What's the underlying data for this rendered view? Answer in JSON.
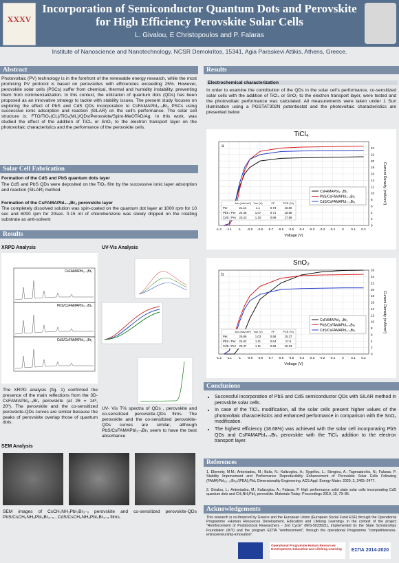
{
  "header": {
    "title": "Incorporation of Semiconductor Quantum Dots and Perovskite for High Efficiency Perovskite Solar Cells",
    "authors": "L. Givalou, E Christopoulos and P. Falaras",
    "affiliation": "Institute of Nanoscience and Nanotechnology, NCSR Demokritos, 15341, Agia Paraskevi Attikis, Athens, Greece.",
    "logo_text": "XXXV"
  },
  "abstract": {
    "heading": "Abstract",
    "text": "Photovoltaic (PV) technology is in the forefront of the renewable energy research, while the most promising PV protocol is based on perovskites with efficiencies exceeding 25%. However, perovskite solar cells (PSCs) suffer from chemical, thermal and humidity instability, preventing them from commercialization. In this context, the utilization of quantum dots (QDs) has been proposed as an innovative strategy to tackle with stability issues. The present study focuses on exploring the effect of PbS and CdS QDs incorporation to CsFAMAPbI₃₋ₓBrₓ PSCs using successive ionic adsorption and reaction (SILAR) on the cell's performance. The solar cell structure is: FTO/TiO₂(CL)/TiO₂(ML)/QDs/Perovskite/Spiro-MeOTAD/Ag. In this work, was studied the effect of the addition of TiCl₄ or SnO₂ to the electron transport layer on the photovoltaic characteristics and the performance of the perovskite cells."
  },
  "fabrication": {
    "heading": "Solar Cell Fabrication",
    "steps": [
      {
        "title": "Formation of the CdS and PbS quantum dots layer",
        "text": "The CdS and PbS QDs were deposited on the TiO₂ film by the successive ionic layer adsorption and reaction (SILAR) method."
      },
      {
        "title": "Formation of the CsFAMAPbI₃₋ₓBrₓ perovskite layer",
        "text": "The completely dissolved solution was spin-coated on the quantum dot layer at 1000 rpm for 10 sec and 6000 rpm for 20sec. 0.15 ml of chlorobenzene was slowly dripped on the rotating substrate as anti-solvent"
      }
    ]
  },
  "results_left": {
    "heading": "Results",
    "xrpd": {
      "title": "XRPD Analysis",
      "panels": [
        "CsFAMAPbI₃₋ₓBrₓ",
        "PbS/CsFAMAPbI₃₋ₓBrₓ",
        "CdS/CsFAMAPbI₃₋ₓBrₓ"
      ],
      "text": "The XRPD analysis (fig. 1) confirmed the presence of the main reflections from the 3D- CsFAMAPbI₃₋ₓBrₓ perovskite (at 2θ = 14º, 20º). The perovskite and the co-sensitized perovskite-QDs curves are similar because the peaks of perovskite overlap those of quantum dots."
    },
    "uvvis": {
      "title": "UV-Vis Analysis",
      "text": "UV- Vis T% spectra of QDs , perovskite and co-sensitized perovskite-QDs films. The perovskite and the co-sensitized perovskite-QDs curves are similar, although PbS/CsFAMAPbI₃₋ₓBrₓ seem to have the best absorbance"
    },
    "sem": {
      "title": "SEM Analysis",
      "text": "SEM images of CsCH₃NH₃PbI₃Br₃₋ₓ perovskite and co-sensitized perovskite-QDs PbS/CsCH₃NH₃PbI₃Br₃₋ₓ , CdS/CsCH₃NH₃PbI₃Br₃₋ₓ films."
    }
  },
  "results_right": {
    "heading": "Results",
    "subheading": "Electrochemical characterization",
    "text": "In order to examine the contribution of the QDs in the solar cell's performance, co-sensitized solar cells with the addition of TiCl₄ or SnO₂ to the electron transport layer, were tested and the photovoltaic performance was calculated. All measurements were taken under 1 Sun illumination using a PGSTAT302N potentiostat and the photovoltaic characteristics are presented below",
    "charts": [
      {
        "type": "line",
        "title": "TiCl₄",
        "panel": "a",
        "xlabel": "Voltage (V)",
        "ylabel": "Current Density (mA/cm²)",
        "x": [
          -1.15,
          -1.1,
          -1.05,
          -1.0,
          -0.95,
          -0.9,
          -0.8,
          -0.6,
          -0.4,
          -0.2,
          0,
          0.2
        ],
        "xlim": [
          -1.2,
          0.25
        ],
        "xticks": [
          -1.2,
          -1.1,
          -1,
          -0.9,
          -0.8,
          -0.7,
          -0.6,
          -0.5,
          -0.4,
          -0.3,
          -0.2,
          -0.1,
          0,
          0.1,
          0.2
        ],
        "ylim": [
          0,
          26
        ],
        "yticks": [
          0,
          2,
          4,
          6,
          8,
          10,
          12,
          14,
          16,
          18,
          20,
          22,
          24
        ],
        "series": [
          {
            "name": "CsFAMAPbI₃₋ₓBrₓ",
            "color": "#111111",
            "values": [
              0,
              0.5,
              6,
              12,
              16,
              18,
              20,
              20.8,
              21,
              21.1,
              21.2,
              21.3
            ]
          },
          {
            "name": "PbS/CsFAMAPbI₃₋ₓBrₓ",
            "color": "#d62020",
            "values": [
              0,
              0,
              3,
              11,
              17,
              20.5,
              23,
              24,
              24.3,
              24.4,
              24.5,
              24.6
            ]
          },
          {
            "name": "CdS/CsFAMAPbI₃₋ₓBrₓ",
            "color": "#2238c8",
            "values": [
              0,
              0.5,
              6,
              13,
              18,
              20.5,
              22,
              22.9,
              23.1,
              23.2,
              23.2,
              23.3
            ]
          }
        ],
        "table": {
          "columns": [
            "Jsc (mA/cm²)",
            "Voc (V)",
            "FF",
            "PCE (%)"
          ],
          "rows": [
            {
              "label": "Per",
              "cells": [
                "21.14",
                "1.1",
                "0.73",
                "16.80"
              ]
            },
            {
              "label": "PbS / Per",
              "cells": [
                "24.46",
                "1.07",
                "0.71",
                "18.68"
              ]
            },
            {
              "label": "CdS / Per",
              "cells": [
                "23.22",
                "1.10",
                "0.69",
                "17.69"
              ]
            }
          ]
        }
      },
      {
        "type": "line",
        "title": "SnO₂",
        "panel": "b",
        "xlabel": "Voltage (V)",
        "ylabel": "Current Density (mA/cm²)",
        "x": [
          -1.15,
          -1.1,
          -1.05,
          -1.0,
          -0.95,
          -0.9,
          -0.8,
          -0.6,
          -0.4,
          -0.2,
          0,
          0.2
        ],
        "xlim": [
          -1.2,
          0.25
        ],
        "xticks": [
          -1.2,
          -1.1,
          -1,
          -0.9,
          -0.8,
          -0.7,
          -0.6,
          -0.5,
          -0.4,
          -0.3,
          -0.2,
          -0.1,
          0,
          0.1,
          0.2
        ],
        "ylim": [
          0,
          26
        ],
        "yticks": [
          0,
          2,
          4,
          6,
          8,
          10,
          12,
          14,
          16,
          18,
          20,
          22,
          24,
          26
        ],
        "series": [
          {
            "name": "CsFAMAPbI₃₋ₓBrₓ",
            "color": "#111111",
            "values": [
              0,
              0,
              0,
              2,
              7,
              11,
              17,
              22,
              24.5,
              25.5,
              25.9,
              26
            ]
          },
          {
            "name": "PbS/CsFAMAPbI₃₋ₓBrₓ",
            "color": "#d62020",
            "values": [
              0,
              1,
              6,
              11,
              15,
              18,
              21,
              23.5,
              24.3,
              24.5,
              24.6,
              24.7
            ]
          },
          {
            "name": "CdS/CsFAMAPbI₃₋ₓBrₓ",
            "color": "#2238c8",
            "values": [
              0,
              1,
              5,
              10,
              14,
              16.5,
              18.5,
              20,
              20.3,
              20.4,
              20.5,
              20.5
            ]
          }
        ],
        "table": {
          "columns": [
            "Jsc (mA/cm²)",
            "Voc (V)",
            "FF",
            "PCE (%)"
          ],
          "rows": [
            {
              "label": "Per",
              "cells": [
                "25.86",
                "1.03",
                "0.58",
                "15.37"
              ]
            },
            {
              "label": "PbS / Per",
              "cells": [
                "24.62",
                "1.11",
                "0.64",
                "17.6"
              ]
            },
            {
              "label": "CdS / Per",
              "cells": [
                "20.47",
                "1.11",
                "0.68",
                "15.23"
              ]
            }
          ]
        }
      }
    ]
  },
  "conclusions": {
    "heading": "Conclusions",
    "items": [
      "Successful incorporation of PbS and CdS semiconductor QDs with SILAR method in perovskite solar cells.",
      "In case of the TiCl₄ modification, all the solar cells present higher values of the photovoltaic characteristics and enhanced performance in comparison with the SnO₂ modification.",
      "The highest efficiency (18.68%) was achieved with the solar cell incorporating PbS QDs and CsFAMAPbI₃₋ₓBrₓ perovskite with the TiCl₄ addition to the electron transport layer."
    ]
  },
  "references": {
    "heading": "References",
    "items": [
      "1. Eliemety, M.M.; Antoniadou, M.; Balis, N.; Kaltzoglou, A.; Sygellou, L.; Stergiou, A.; Tagmatarchis, N.; Falaras, P. Stability Improvement and Performance Reproducibility Enhancement of Perovskite Solar Cells Following (FAMA)PbI₃₍₁₋ₓ₎Br₃ₓ/(PEA)₂PbI₄ Dimensionality Engineering. ACS Appl. Energy Mater. 2020, 3, 2465–2477.",
      "2. Givalou, L.; Antoniadou, M.; Kaltzoglou, A.; Falaras, P. High performance solid state solar cells incorporating CdS quantum dots and CH₃NH₃PbI₃ perovskite. Materials Today: Proceedings 2019, 19, 79–85."
    ]
  },
  "acknowledgements": {
    "heading": "Acknowledgements",
    "text": "This research is co-financed by Greece and the European Union (European Social Fund ESF) through the Operational Programme «Human Resources Development, Education and Lifelong Learning» in the context of the project \"Reinforcement of Postdoctoral Researchers - 2nd Cycle\" (MIS-5033021), implemented by the State Scholarships Foundation (IKY) and the program ΕΣΠΑ \"reinforcement\", through the operational Programme \"competitiveness-entrepreneurship-innovation\".",
    "logos": [
      "Operational Programme Human Resources Development, Education and Lifelong Learning",
      "ΕΣΠΑ 2014-2020"
    ]
  }
}
